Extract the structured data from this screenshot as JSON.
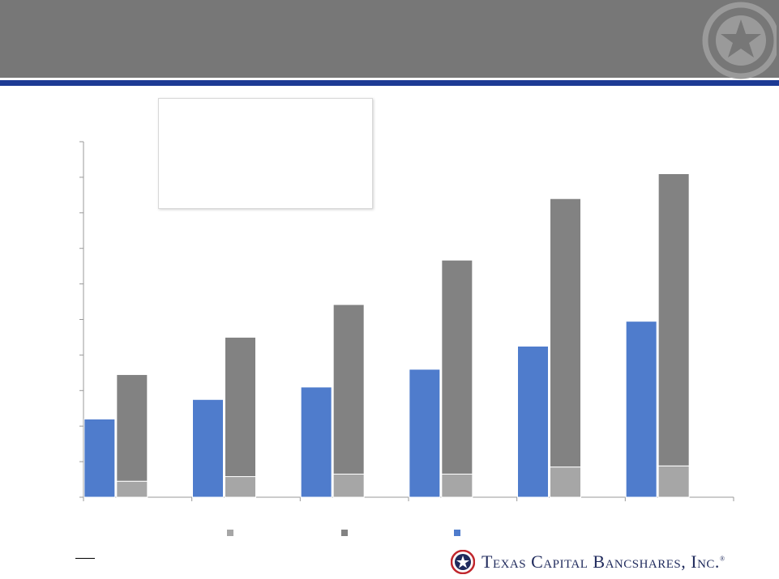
{
  "header": {
    "title": "",
    "band_color": "#777777",
    "rule_color": "#1d3a94"
  },
  "logo": {
    "text": "Texas Capital Bancshares, Inc.",
    "registered_mark": "®",
    "icon": "star-seal-icon"
  },
  "colors": {
    "series_a": "#4f7ccc",
    "series_b": "#828282",
    "series_c": "#a6a6a6"
  },
  "chart_data": {
    "type": "bar",
    "title": "",
    "xlabel": "",
    "ylabel": "",
    "ylim": [
      0,
      10
    ],
    "grid": false,
    "y_tick_count": 11,
    "categories": [
      "",
      "",
      "",
      "",
      "",
      ""
    ],
    "series": [
      {
        "values": [
          2.2,
          2.75,
          3.1,
          3.6,
          4.25,
          4.95
        ],
        "color": "#4f7ccc",
        "group": "left"
      },
      {
        "values": [
          0.45,
          0.58,
          0.65,
          0.65,
          0.85,
          0.88
        ],
        "color": "#a6a6a6",
        "group": "right",
        "stack": "bottom"
      },
      {
        "values": [
          3.0,
          3.92,
          4.77,
          6.02,
          7.55,
          8.22
        ],
        "color": "#828282",
        "group": "right",
        "stack": "top"
      }
    ],
    "legend_position": "bottom"
  }
}
